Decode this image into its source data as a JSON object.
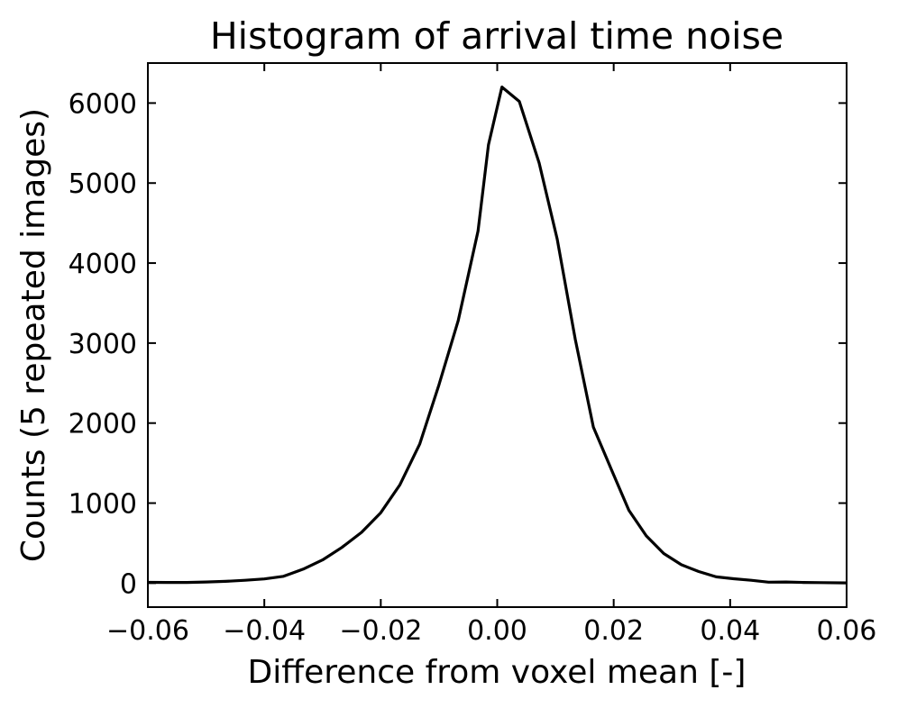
{
  "chart_data": {
    "type": "line",
    "title": "Histogram of arrival time noise",
    "xlabel": "Difference from voxel mean [-]",
    "ylabel": "Counts (5 repeated images)",
    "xlim": [
      -0.06,
      0.06
    ],
    "ylim": [
      -300,
      6500
    ],
    "x_ticks": [
      -0.06,
      -0.04,
      -0.02,
      0.0,
      0.02,
      0.04,
      0.06
    ],
    "x_tick_labels": [
      "−0.06",
      "−0.04",
      "−0.02",
      "0.00",
      "0.02",
      "0.04",
      "0.06"
    ],
    "y_ticks": [
      0,
      1000,
      2000,
      3000,
      4000,
      5000,
      6000
    ],
    "y_tick_labels": [
      "0",
      "1000",
      "2000",
      "3000",
      "4000",
      "5000",
      "6000"
    ],
    "grid": false,
    "series": [
      {
        "color": "#000000",
        "x": [
          -0.06,
          -0.0567,
          -0.0533,
          -0.05,
          -0.0467,
          -0.0433,
          -0.04,
          -0.0367,
          -0.0333,
          -0.03,
          -0.0267,
          -0.0233,
          -0.02,
          -0.0167,
          -0.0133,
          -0.01,
          -0.0067,
          -0.0033,
          -0.0015,
          0.0008,
          0.0038,
          0.0072,
          0.0103,
          0.0134,
          0.0165,
          0.0196,
          0.0226,
          0.0256,
          0.0286,
          0.0316,
          0.0346,
          0.0376,
          0.0406,
          0.0436,
          0.0466,
          0.0496,
          0.0526,
          0.0556,
          0.06
        ],
        "values": [
          10,
          8,
          8,
          14,
          22,
          35,
          52,
          85,
          175,
          290,
          445,
          635,
          880,
          1230,
          1740,
          2480,
          3280,
          4400,
          5480,
          6200,
          6020,
          5250,
          4300,
          3050,
          1950,
          1420,
          910,
          590,
          370,
          230,
          145,
          78,
          55,
          35,
          12,
          14,
          8,
          6,
          3
        ]
      }
    ]
  }
}
